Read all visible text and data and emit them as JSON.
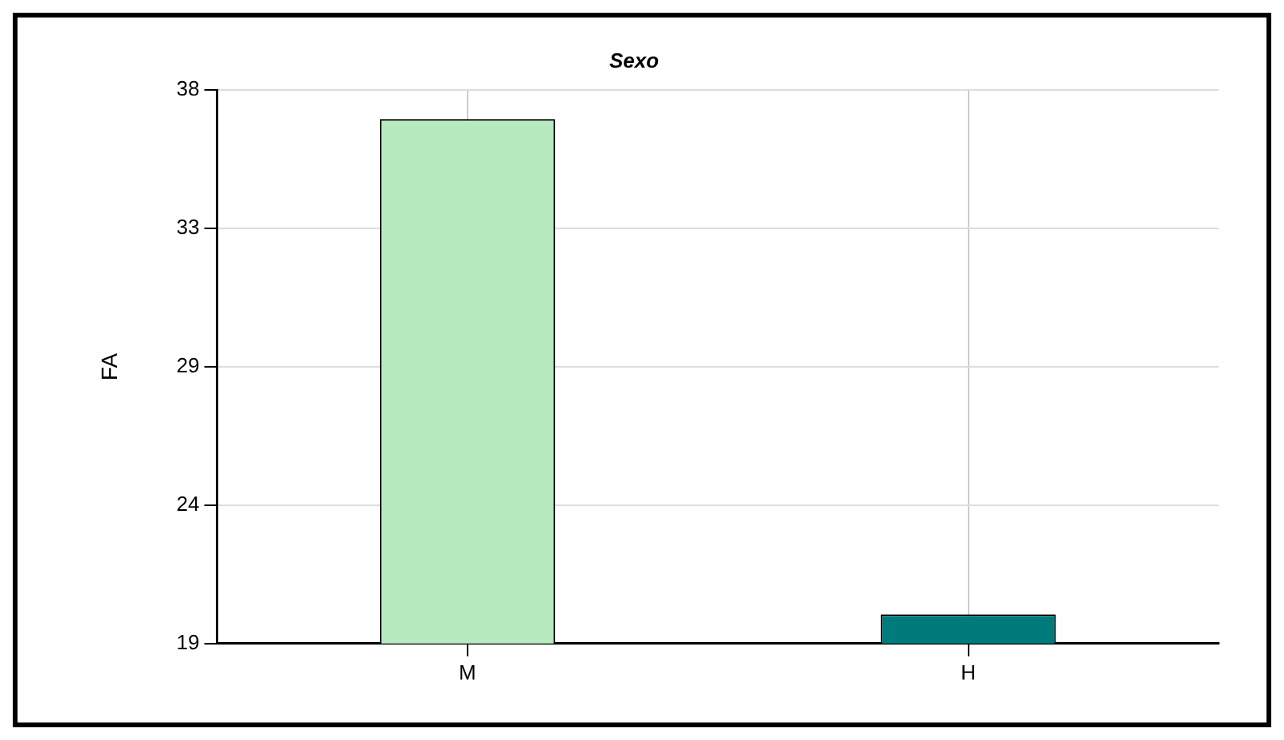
{
  "chart_data": {
    "type": "bar",
    "title": "Sexo",
    "ylabel": "FA",
    "categories": [
      "M",
      "H"
    ],
    "values": [
      37,
      20
    ],
    "colors": [
      "#b8eabf",
      "#007b7b"
    ],
    "ylim": [
      19,
      38
    ],
    "yticks": [
      19,
      {
        "value": 23.75,
        "label": "24"
      },
      {
        "value": 28.5,
        "label": "29"
      },
      {
        "value": 33.25,
        "label": "33"
      },
      38
    ],
    "grid": true,
    "legend": false
  }
}
